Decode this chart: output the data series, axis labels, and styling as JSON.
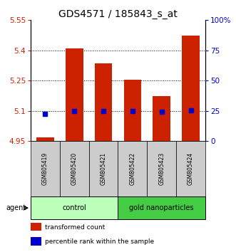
{
  "title": "GDS4571 / 185843_s_at",
  "samples": [
    "GSM805419",
    "GSM805420",
    "GSM805421",
    "GSM805422",
    "GSM805423",
    "GSM805424"
  ],
  "red_values": [
    4.97,
    5.41,
    5.335,
    5.255,
    5.175,
    5.475
  ],
  "blue_values": [
    5.085,
    5.1,
    5.1,
    5.1,
    5.095,
    5.103
  ],
  "ylim_left": [
    4.95,
    5.55
  ],
  "ylim_right": [
    0,
    100
  ],
  "yticks_left": [
    4.95,
    5.1,
    5.25,
    5.4,
    5.55
  ],
  "yticks_right": [
    0,
    25,
    50,
    75,
    100
  ],
  "ytick_labels_left": [
    "4.95",
    "5.1",
    "5.25",
    "5.4",
    "5.55"
  ],
  "ytick_labels_right": [
    "0",
    "25",
    "50",
    "75",
    "100%"
  ],
  "dotted_lines": [
    5.1,
    5.25,
    5.4
  ],
  "groups": [
    {
      "label": "control",
      "start": 0,
      "end": 3,
      "color": "#bbffbb"
    },
    {
      "label": "gold nanoparticles",
      "start": 3,
      "end": 6,
      "color": "#44cc44"
    }
  ],
  "agent_label": "agent",
  "bar_color": "#cc2200",
  "dot_color": "#0000cc",
  "bar_width": 0.6,
  "legend_items": [
    {
      "color": "#cc2200",
      "label": "transformed count"
    },
    {
      "color": "#0000cc",
      "label": "percentile rank within the sample"
    }
  ],
  "sample_box_color": "#cccccc",
  "title_fontsize": 10,
  "axis_color_left": "#cc2200",
  "axis_color_right": "#0000cc"
}
